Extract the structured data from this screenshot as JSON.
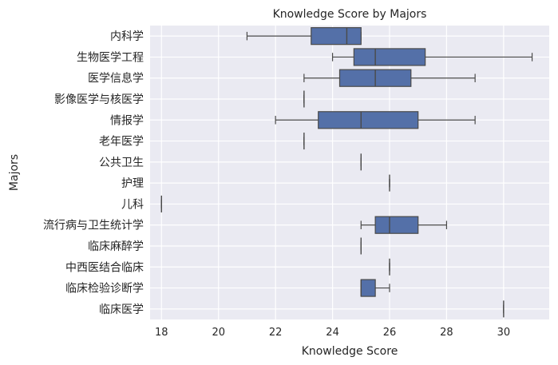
{
  "chart_data": {
    "type": "box",
    "orientation": "horizontal",
    "title": "Knowledge Score by Majors",
    "xlabel": "Knowledge Score",
    "ylabel": "Majors",
    "xlim": [
      17.6,
      31.6
    ],
    "xticks": [
      18,
      20,
      22,
      24,
      26,
      28,
      30
    ],
    "grid": true,
    "box_color": "#5470a8",
    "background": "#eaeaf2",
    "categories": [
      "内科学",
      "生物医学工程",
      "医学信息学",
      "影像医学与核医学",
      "情报学",
      "老年医学",
      "公共卫生",
      "护理",
      "儿科",
      "流行病与卫生统计学",
      "临床麻醉学",
      "中西医结合临床",
      "临床检验诊断学",
      "临床医学"
    ],
    "boxes": [
      {
        "whisker_low": 21,
        "q1": 23.25,
        "median": 24.5,
        "q3": 25,
        "whisker_high": 25
      },
      {
        "whisker_low": 24,
        "q1": 24.75,
        "median": 25.5,
        "q3": 27.25,
        "whisker_high": 31
      },
      {
        "whisker_low": 23,
        "q1": 24.25,
        "median": 25.5,
        "q3": 26.75,
        "whisker_high": 29
      },
      {
        "whisker_low": 23,
        "q1": 23,
        "median": 23,
        "q3": 23,
        "whisker_high": 23
      },
      {
        "whisker_low": 22,
        "q1": 23.5,
        "median": 25,
        "q3": 27,
        "whisker_high": 29
      },
      {
        "whisker_low": 23,
        "q1": 23,
        "median": 23,
        "q3": 23,
        "whisker_high": 23
      },
      {
        "whisker_low": 25,
        "q1": 25,
        "median": 25,
        "q3": 25,
        "whisker_high": 25
      },
      {
        "whisker_low": 26,
        "q1": 26,
        "median": 26,
        "q3": 26,
        "whisker_high": 26
      },
      {
        "whisker_low": 18,
        "q1": 18,
        "median": 18,
        "q3": 18,
        "whisker_high": 18
      },
      {
        "whisker_low": 25,
        "q1": 25.5,
        "median": 26,
        "q3": 27,
        "whisker_high": 28
      },
      {
        "whisker_low": 25,
        "q1": 25,
        "median": 25,
        "q3": 25,
        "whisker_high": 25
      },
      {
        "whisker_low": 26,
        "q1": 26,
        "median": 26,
        "q3": 26,
        "whisker_high": 26
      },
      {
        "whisker_low": 25,
        "q1": 25,
        "median": 25,
        "q3": 25.5,
        "whisker_high": 26
      },
      {
        "whisker_low": 30,
        "q1": 30,
        "median": 30,
        "q3": 30,
        "whisker_high": 30
      }
    ]
  }
}
